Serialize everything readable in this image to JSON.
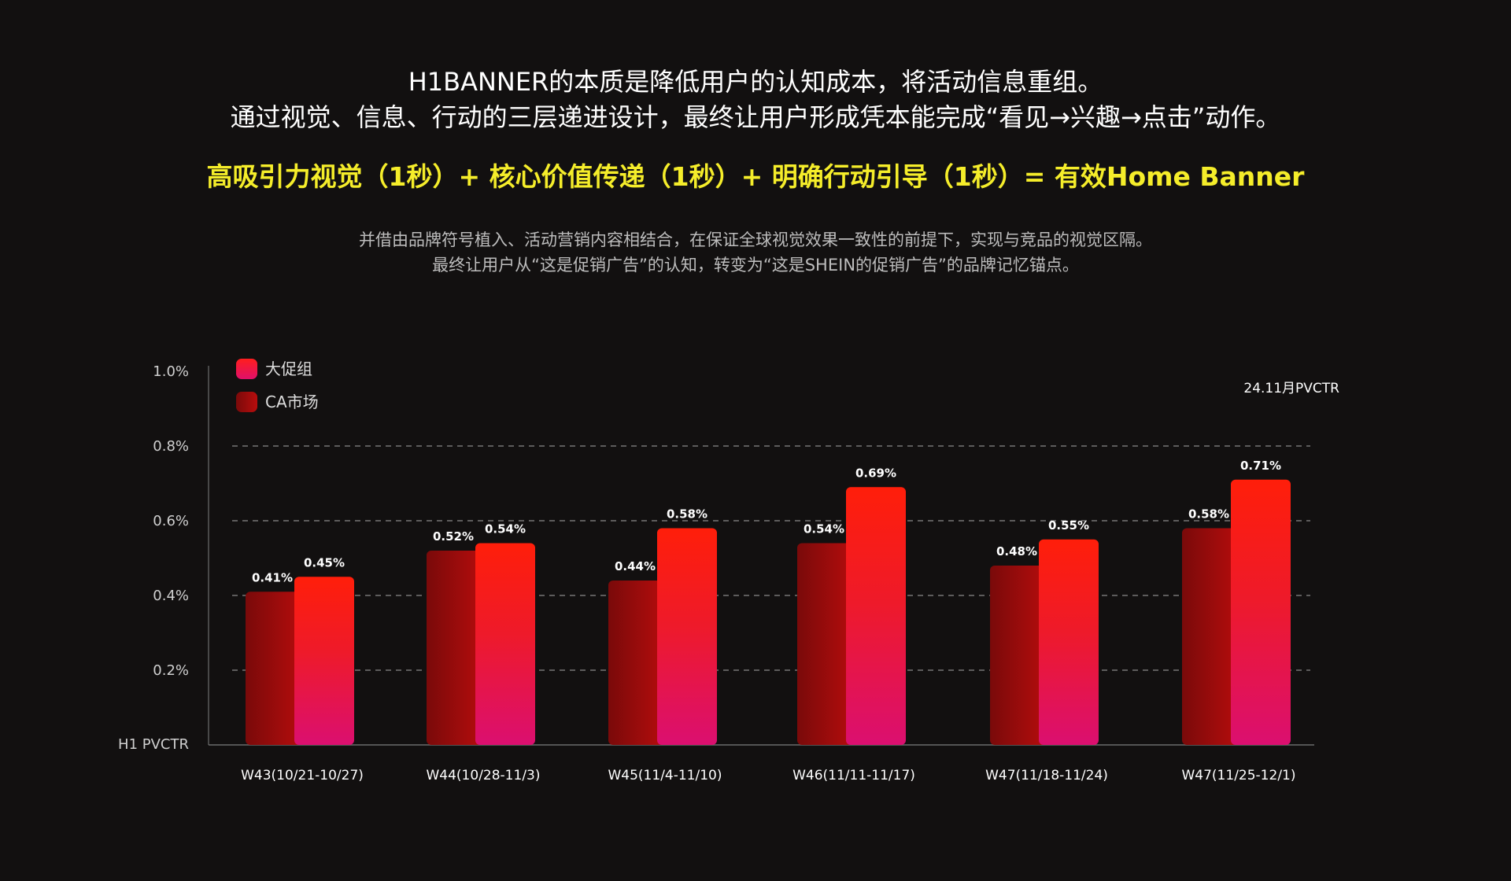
{
  "header": {
    "line1": "H1BANNER的本质是降低用户的认知成本，将活动信息重组。",
    "line2": "通过视觉、信息、行动的三层递进设计，最终让用户形成凭本能完成“看见→兴趣→点击”动作。",
    "formula": "高吸引力视觉（1秒）+ 核心价值传递（1秒）+ 明确行动引导（1秒）= 有效Home Banner",
    "sub1": "并借由品牌符号植入、活动营销内容相结合，在保证全球视觉效果一致性的前提下，实现与竞品的视觉区隔。",
    "sub2": "最终让用户从“这是促销广告”的认知，转变为“这是SHEIN的促销广告”的品牌记忆锚点。"
  },
  "chart_data": {
    "type": "bar",
    "title": "24.11月PVCTR",
    "ylabel": "H1 PVCTR",
    "xlabel": "",
    "ylim": [
      0,
      1.0
    ],
    "yticks": [
      "1.0%",
      "0.8%",
      "0.6%",
      "0.4%",
      "0.2%"
    ],
    "grid": "dashed",
    "legend_position": "top-left",
    "categories": [
      "W43(10/21-10/27)",
      "W44(10/28-11/3)",
      "W45(11/4-11/10)",
      "W46(11/11-11/17)",
      "W47(11/18-11/24)",
      "W47(11/25-12/1)"
    ],
    "series": [
      {
        "name": "CA市场",
        "values": [
          0.41,
          0.52,
          0.44,
          0.54,
          0.48,
          0.58
        ],
        "labels": [
          "0.41%",
          "0.52%",
          "0.44%",
          "0.54%",
          "0.48%",
          "0.58%"
        ],
        "color": "#9a0a0a"
      },
      {
        "name": "大促组",
        "values": [
          0.45,
          0.54,
          0.58,
          0.69,
          0.55,
          0.71
        ],
        "labels": [
          "0.45%",
          "0.54%",
          "0.58%",
          "0.69%",
          "0.55%",
          "0.71%"
        ],
        "color": "#ff1e1e"
      }
    ]
  }
}
